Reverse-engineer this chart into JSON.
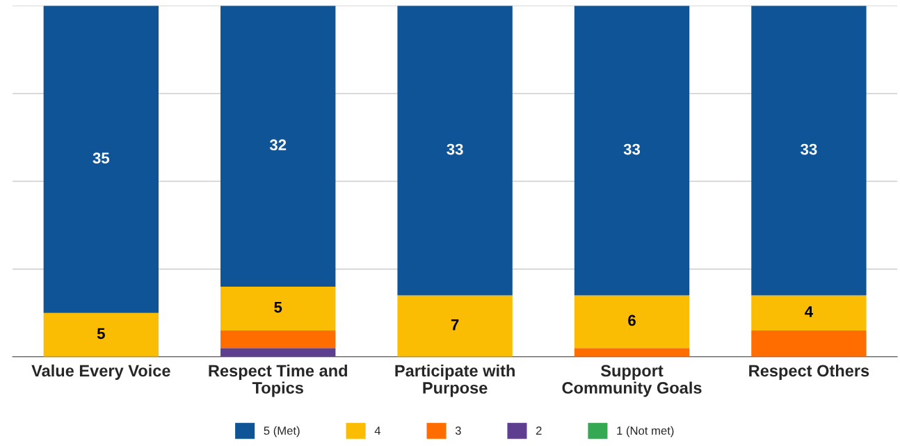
{
  "chart_data": {
    "type": "bar",
    "stacked": true,
    "categories": [
      "Value Every Voice",
      "Respect Time and\nTopics",
      "Participate with\nPurpose",
      "Support\nCommunity Goals",
      "Respect Others"
    ],
    "series": [
      {
        "name": "1 (Not met)",
        "color": "#34a853",
        "values": [
          0,
          0,
          0,
          0,
          0
        ],
        "value_labels": [
          null,
          null,
          null,
          null,
          null
        ]
      },
      {
        "name": "2",
        "color": "#5e3f8f",
        "values": [
          0,
          1,
          0,
          0,
          0
        ],
        "value_labels": [
          null,
          null,
          null,
          null,
          null
        ]
      },
      {
        "name": "3",
        "color": "#ff6d01",
        "values": [
          0,
          2,
          0,
          1,
          3
        ],
        "value_labels": [
          null,
          null,
          null,
          null,
          null
        ]
      },
      {
        "name": "4",
        "color": "#fbbc04",
        "values": [
          5,
          5,
          7,
          6,
          4
        ],
        "value_labels": [
          "5",
          "5",
          "7",
          "6",
          "4"
        ]
      },
      {
        "name": "5 (Met)",
        "color": "#0f5496",
        "values": [
          35,
          32,
          33,
          33,
          33
        ],
        "value_labels": [
          "35",
          "32",
          "33",
          "33",
          "33"
        ]
      }
    ],
    "ylim": [
      0,
      40
    ],
    "yticks": [
      {
        "value": 0,
        "label": null
      },
      {
        "value": 10,
        "label": null
      },
      {
        "value": 20,
        "label": null
      },
      {
        "value": 30,
        "label": null
      },
      {
        "value": 40,
        "label": null
      }
    ],
    "grid": "y",
    "legend": "bottom"
  }
}
